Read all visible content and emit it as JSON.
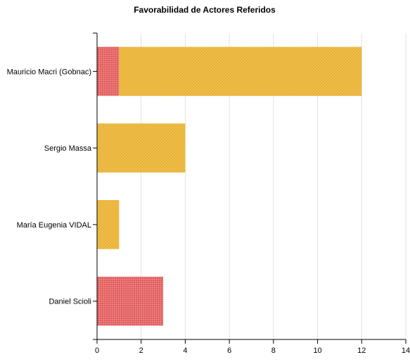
{
  "chart_data": {
    "type": "bar",
    "orientation": "horizontal",
    "stacked": true,
    "title": "Favorabilidad de Actores Referidos",
    "xlabel": "",
    "ylabel": "",
    "xlim": [
      0,
      14
    ],
    "xticks": [
      0,
      2,
      4,
      6,
      8,
      10,
      12,
      14
    ],
    "grid": true,
    "legend": "none",
    "categories": [
      "Mauricio Macri (Gobnac)",
      "Sergio Massa",
      "María Eugenia VIDAL",
      "Daniel Scioli"
    ],
    "series": [
      {
        "values": [
          1,
          0,
          0,
          3
        ],
        "color": "#e05a5a",
        "pattern": "crosshatch"
      },
      {
        "values": [
          11,
          4,
          1,
          0
        ],
        "color": "#f2c14e",
        "pattern": "diagonal-stripes"
      }
    ]
  }
}
